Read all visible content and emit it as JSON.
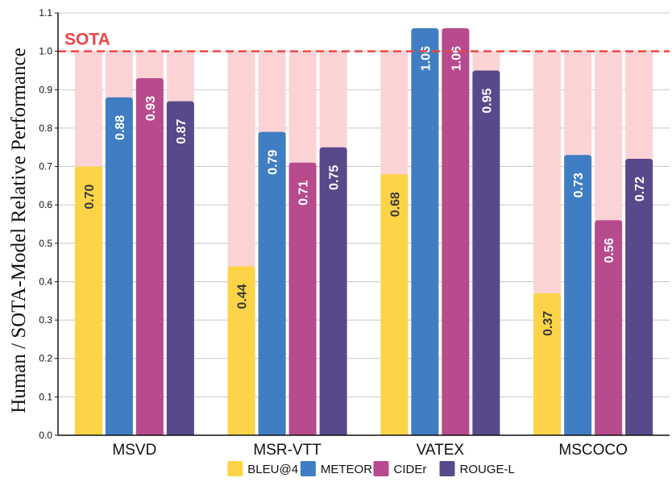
{
  "chart_data": {
    "type": "bar",
    "ylabel": "Human / SOTA-Model Relative Performance",
    "ylim": [
      0.0,
      1.1
    ],
    "yticks": [
      "0.0",
      "0.1",
      "0.2",
      "0.3",
      "0.4",
      "0.5",
      "0.6",
      "0.7",
      "0.8",
      "0.9",
      "1.0",
      "1.1"
    ],
    "grid": true,
    "categories": [
      "MSVD",
      "MSR-VTT",
      "VATEX",
      "MSCOCO"
    ],
    "series": [
      {
        "name": "BLEU@4",
        "color": "#FDD447",
        "values": [
          0.7,
          0.44,
          0.68,
          0.37
        ],
        "labels": [
          "0.70",
          "0.44",
          "0.68",
          "0.37"
        ]
      },
      {
        "name": "METEOR",
        "color": "#3F7EC2",
        "values": [
          0.88,
          0.79,
          1.06,
          0.73
        ],
        "labels": [
          "0.88",
          "0.79",
          "1.06",
          "0.73"
        ]
      },
      {
        "name": "CIDEr",
        "color": "#B84A8E",
        "values": [
          0.93,
          0.71,
          1.06,
          0.56
        ],
        "labels": [
          "0.93",
          "0.71",
          "1.06",
          "0.56"
        ]
      },
      {
        "name": "ROUGE-L",
        "color": "#57498A",
        "values": [
          0.87,
          0.75,
          0.95,
          0.72
        ],
        "labels": [
          "0.87",
          "0.75",
          "0.95",
          "0.72"
        ]
      }
    ],
    "reference_line": {
      "label": "SOTA",
      "value": 1.0,
      "color": "#EF4444",
      "style": "dashed"
    },
    "background_bar_value": 1.0,
    "background_bar_color": "#FCD3D5",
    "legend_position": "bottom-center"
  }
}
